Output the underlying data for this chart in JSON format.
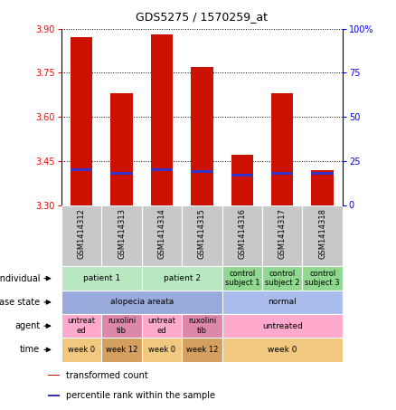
{
  "title": "GDS5275 / 1570259_at",
  "samples": [
    "GSM1414312",
    "GSM1414313",
    "GSM1414314",
    "GSM1414315",
    "GSM1414316",
    "GSM1414317",
    "GSM1414318"
  ],
  "transformed_counts": [
    3.87,
    3.68,
    3.88,
    3.77,
    3.47,
    3.68,
    3.42
  ],
  "percentile_ranks": [
    20,
    18,
    20,
    19,
    17,
    18,
    18
  ],
  "ylim_left": [
    3.3,
    3.9
  ],
  "yticks_left": [
    3.3,
    3.45,
    3.6,
    3.75,
    3.9
  ],
  "ylim_right": [
    0,
    100
  ],
  "yticks_right": [
    0,
    25,
    50,
    75,
    100
  ],
  "ytick_labels_right": [
    "0",
    "25",
    "50",
    "75",
    "100%"
  ],
  "bar_color": "#cc1100",
  "percentile_color": "#3333cc",
  "background_color": "#ffffff",
  "individual_row": {
    "groups": [
      {
        "label": "patient 1",
        "span": [
          0,
          2
        ],
        "color": "#b8e8c0"
      },
      {
        "label": "patient 2",
        "span": [
          2,
          4
        ],
        "color": "#b8e8c0"
      },
      {
        "label": "control\nsubject 1",
        "span": [
          4,
          5
        ],
        "color": "#90d890"
      },
      {
        "label": "control\nsubject 2",
        "span": [
          5,
          6
        ],
        "color": "#90d890"
      },
      {
        "label": "control\nsubject 3",
        "span": [
          6,
          7
        ],
        "color": "#90d890"
      }
    ]
  },
  "disease_state_row": {
    "groups": [
      {
        "label": "alopecia areata",
        "span": [
          0,
          4
        ],
        "color": "#99aadd"
      },
      {
        "label": "normal",
        "span": [
          4,
          7
        ],
        "color": "#aabbee"
      }
    ]
  },
  "agent_row": {
    "groups": [
      {
        "label": "untreat\ned",
        "span": [
          0,
          1
        ],
        "color": "#ffaacc"
      },
      {
        "label": "ruxolini\ntib",
        "span": [
          1,
          2
        ],
        "color": "#dd88aa"
      },
      {
        "label": "untreat\ned",
        "span": [
          2,
          3
        ],
        "color": "#ffaacc"
      },
      {
        "label": "ruxolini\ntib",
        "span": [
          3,
          4
        ],
        "color": "#dd88aa"
      },
      {
        "label": "untreated",
        "span": [
          4,
          7
        ],
        "color": "#ffaacc"
      }
    ]
  },
  "time_row": {
    "groups": [
      {
        "label": "week 0",
        "span": [
          0,
          1
        ],
        "color": "#f0c880"
      },
      {
        "label": "week 12",
        "span": [
          1,
          2
        ],
        "color": "#d4a060"
      },
      {
        "label": "week 0",
        "span": [
          2,
          3
        ],
        "color": "#f0c880"
      },
      {
        "label": "week 12",
        "span": [
          3,
          4
        ],
        "color": "#d4a060"
      },
      {
        "label": "week 0",
        "span": [
          4,
          7
        ],
        "color": "#f0c880"
      }
    ]
  },
  "row_labels": [
    "individual",
    "disease state",
    "agent",
    "time"
  ],
  "legend_items": [
    {
      "color": "#cc1100",
      "label": "transformed count"
    },
    {
      "color": "#3333cc",
      "label": "percentile rank within the sample"
    }
  ]
}
